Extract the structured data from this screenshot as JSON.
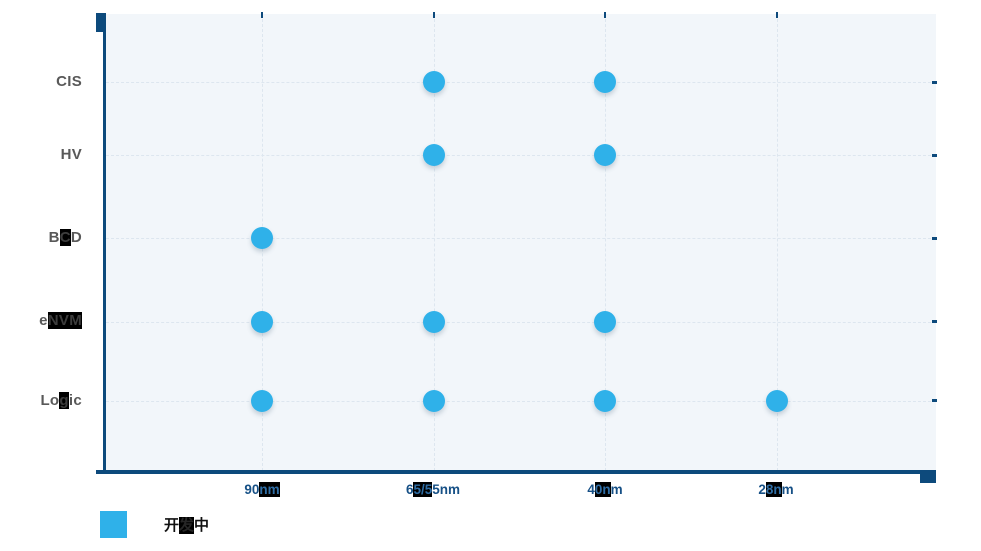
{
  "chart_data": {
    "type": "scatter",
    "title": "",
    "x_categories": [
      "90nm",
      "65/55nm",
      "40nm",
      "28nm"
    ],
    "y_categories": [
      "Logic",
      "eNVM",
      "BCD",
      "HV",
      "CIS"
    ],
    "points": [
      {
        "x": "65/55nm",
        "y": "CIS"
      },
      {
        "x": "40nm",
        "y": "CIS"
      },
      {
        "x": "65/55nm",
        "y": "HV"
      },
      {
        "x": "40nm",
        "y": "HV"
      },
      {
        "x": "90nm",
        "y": "BCD"
      },
      {
        "x": "90nm",
        "y": "eNVM"
      },
      {
        "x": "65/55nm",
        "y": "eNVM"
      },
      {
        "x": "40nm",
        "y": "eNVM"
      },
      {
        "x": "90nm",
        "y": "Logic"
      },
      {
        "x": "65/55nm",
        "y": "Logic"
      },
      {
        "x": "40nm",
        "y": "Logic"
      },
      {
        "x": "28nm",
        "y": "Logic"
      }
    ],
    "series": [
      {
        "name": "开发中",
        "color": "#2fb1e9",
        "values": [
          [
            "65/55nm",
            "CIS"
          ],
          [
            "40nm",
            "CIS"
          ],
          [
            "65/55nm",
            "HV"
          ],
          [
            "40nm",
            "HV"
          ],
          [
            "90nm",
            "BCD"
          ],
          [
            "90nm",
            "eNVM"
          ],
          [
            "65/55nm",
            "eNVM"
          ],
          [
            "40nm",
            "eNVM"
          ],
          [
            "90nm",
            "Logic"
          ],
          [
            "65/55nm",
            "Logic"
          ],
          [
            "40nm",
            "Logic"
          ],
          [
            "28nm",
            "Logic"
          ]
        ]
      }
    ],
    "legend_position": "bottom-left",
    "grid": "dashed",
    "dot_color": "#2fb1e9",
    "axis_color": "#0d4a7c",
    "plot_background": "#f2f6fa"
  },
  "y_axis": {
    "labels": [
      {
        "pre": "CIS",
        "hl": "",
        "post": ""
      },
      {
        "pre": "HV",
        "hl": "",
        "post": ""
      },
      {
        "pre": "B",
        "hl": "C",
        "post": "D"
      },
      {
        "pre": "e",
        "hl": "NVM",
        "post": ""
      },
      {
        "pre": "Lo",
        "hl": "g",
        "post": "ic"
      }
    ]
  },
  "x_axis": {
    "labels": [
      {
        "pre": "90",
        "hl": "nm",
        "post": ""
      },
      {
        "pre": "6",
        "hl": "5/5",
        "post": "5nm"
      },
      {
        "pre": "4",
        "hl": "0n",
        "post": "m"
      },
      {
        "pre": "2",
        "hl": "8n",
        "post": "m"
      }
    ]
  },
  "legend": {
    "swatch_color": "#2fb1e9",
    "label_pre": "开",
    "label_hl": "发",
    "label_post": "中"
  }
}
